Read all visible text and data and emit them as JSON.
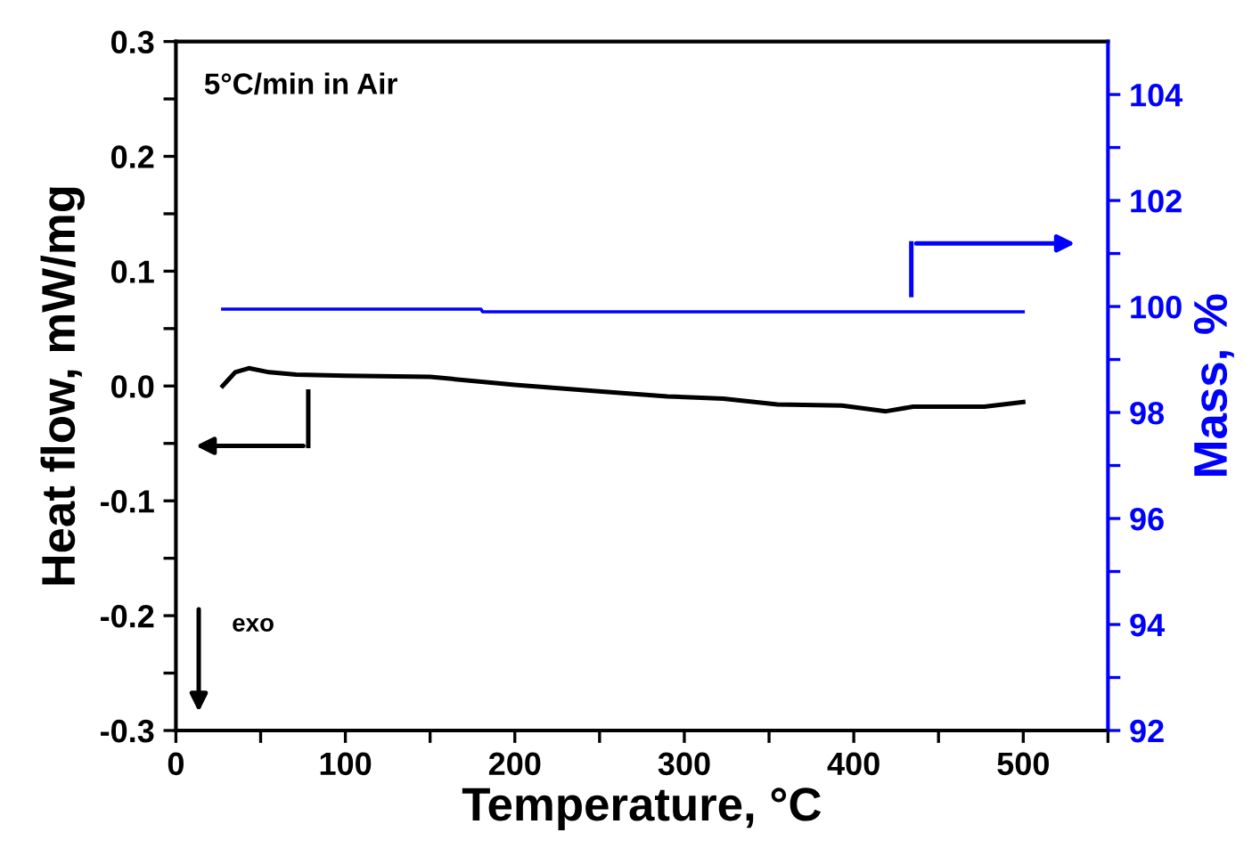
{
  "chart_data": {
    "type": "line",
    "xlabel": "Temperature, °C",
    "ylabel": "Heat flow, mW/mg",
    "y2label": "Mass, %",
    "annotations": [
      "5°C/min in Air",
      "exo"
    ],
    "series": [
      {
        "color": "#000000",
        "x": [
          27.6,
          35,
          43,
          55,
          71,
          100,
          150,
          200,
          253,
          290,
          323,
          355,
          393,
          419,
          435,
          460,
          477,
          500
        ],
        "values": [
          0.0,
          0.012,
          0.0155,
          0.012,
          0.01,
          0.009,
          0.008,
          0.001,
          -0.005,
          -0.009,
          -0.011,
          -0.016,
          -0.017,
          -0.022,
          -0.018,
          -0.018,
          -0.018,
          -0.014
        ]
      },
      {
        "color": "#0000ff",
        "axis": "y2",
        "x": [
          27.6,
          180,
          181,
          500
        ],
        "values": [
          99.95,
          99.95,
          99.9,
          99.9
        ]
      }
    ],
    "xlim": [
      0,
      550
    ],
    "xticks": [
      0,
      {
        "value": 50,
        "label": null
      },
      100,
      {
        "value": 150,
        "label": null
      },
      200,
      {
        "value": 250,
        "label": null
      },
      300,
      {
        "value": 350,
        "label": null
      },
      400,
      {
        "value": 450,
        "label": null
      },
      500,
      {
        "value": 550,
        "label": null
      }
    ],
    "ylim": [
      -0.3,
      0.3
    ],
    "yticks": [
      {
        "value": -0.3,
        "label": "-0.3"
      },
      {
        "value": -0.25,
        "label": null
      },
      {
        "value": -0.2,
        "label": "-0.2"
      },
      {
        "value": -0.15,
        "label": null
      },
      {
        "value": -0.1,
        "label": "-0.1"
      },
      {
        "value": -0.05,
        "label": null
      },
      {
        "value": 0.0,
        "label": "0.0"
      },
      {
        "value": 0.05,
        "label": null
      },
      0.1,
      {
        "value": 0.15,
        "label": null
      },
      0.2,
      {
        "value": 0.25,
        "label": null
      },
      0.3
    ],
    "y2lim": [
      92,
      105
    ],
    "y2ticks": [
      92,
      {
        "value": 93,
        "label": null
      },
      94,
      {
        "value": 95,
        "label": null
      },
      96,
      {
        "value": 97,
        "label": null
      },
      98,
      {
        "value": 99,
        "label": null
      },
      100,
      {
        "value": 101,
        "label": null
      },
      102,
      {
        "value": 103,
        "label": null
      },
      104
    ],
    "grid": false,
    "legend": false,
    "marker": "none",
    "line_style": "solid"
  }
}
